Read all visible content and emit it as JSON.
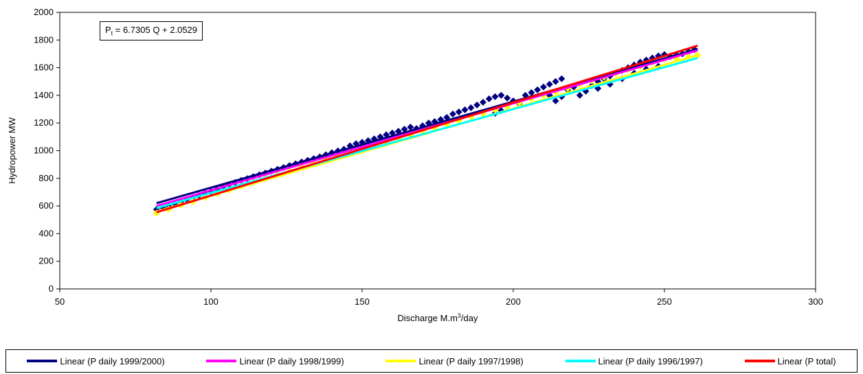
{
  "chart_data": {
    "type": "scatter",
    "title": "",
    "xlabel": {
      "prefix": "Discharge M.m",
      "sup": "3",
      "suffix": "/day"
    },
    "ylabel": "Hydropower MW",
    "xlim": [
      50,
      300
    ],
    "ylim": [
      0,
      2000
    ],
    "xticks": [
      "50",
      "100",
      "150",
      "200",
      "250",
      "300"
    ],
    "yticks": [
      "0",
      "200",
      "400",
      "600",
      "800",
      "1000",
      "1200",
      "1400",
      "1600",
      "1800",
      "2000"
    ],
    "grid": false,
    "equation": {
      "P": "P",
      "sub": "t",
      "rest": " = 6.7305 Q + 2.0529"
    },
    "scatter_series": [
      {
        "color": "#000080",
        "marker": "diamond",
        "points": [
          [
            82,
            575
          ],
          [
            84,
            590
          ],
          [
            86,
            600
          ],
          [
            88,
            615
          ],
          [
            90,
            630
          ],
          [
            92,
            645
          ],
          [
            94,
            660
          ],
          [
            96,
            675
          ],
          [
            98,
            690
          ],
          [
            100,
            705
          ],
          [
            102,
            722
          ],
          [
            104,
            740
          ],
          [
            106,
            755
          ],
          [
            108,
            770
          ],
          [
            110,
            785
          ],
          [
            112,
            798
          ],
          [
            114,
            812
          ],
          [
            116,
            825
          ],
          [
            118,
            838
          ],
          [
            120,
            852
          ],
          [
            122,
            865
          ],
          [
            124,
            878
          ],
          [
            126,
            892
          ],
          [
            128,
            905
          ],
          [
            130,
            918
          ],
          [
            132,
            930
          ],
          [
            134,
            942
          ],
          [
            136,
            955
          ],
          [
            138,
            970
          ],
          [
            140,
            985
          ],
          [
            142,
            998
          ],
          [
            144,
            1010
          ],
          [
            146,
            1035
          ],
          [
            148,
            1050
          ],
          [
            150,
            1060
          ],
          [
            152,
            1072
          ],
          [
            154,
            1085
          ],
          [
            156,
            1100
          ],
          [
            158,
            1115
          ],
          [
            160,
            1128
          ],
          [
            162,
            1140
          ],
          [
            164,
            1155
          ],
          [
            166,
            1170
          ],
          [
            168,
            1160
          ],
          [
            170,
            1180
          ],
          [
            172,
            1200
          ],
          [
            174,
            1210
          ],
          [
            176,
            1225
          ],
          [
            178,
            1240
          ],
          [
            180,
            1265
          ],
          [
            182,
            1280
          ],
          [
            184,
            1295
          ],
          [
            186,
            1310
          ],
          [
            188,
            1330
          ],
          [
            190,
            1350
          ],
          [
            192,
            1375
          ],
          [
            194,
            1390
          ],
          [
            196,
            1400
          ],
          [
            198,
            1380
          ],
          [
            200,
            1360
          ],
          [
            194,
            1270
          ],
          [
            196,
            1290
          ],
          [
            198,
            1320
          ],
          [
            202,
            1340
          ],
          [
            204,
            1400
          ],
          [
            206,
            1420
          ],
          [
            208,
            1440
          ],
          [
            210,
            1460
          ],
          [
            212,
            1480
          ],
          [
            214,
            1500
          ],
          [
            216,
            1520
          ],
          [
            212,
            1400
          ],
          [
            214,
            1360
          ],
          [
            216,
            1390
          ],
          [
            218,
            1440
          ],
          [
            220,
            1460
          ],
          [
            222,
            1400
          ],
          [
            224,
            1430
          ],
          [
            226,
            1470
          ],
          [
            228,
            1500
          ],
          [
            230,
            1520
          ],
          [
            232,
            1540
          ],
          [
            234,
            1560
          ],
          [
            236,
            1580
          ],
          [
            238,
            1600
          ],
          [
            240,
            1620
          ],
          [
            242,
            1640
          ],
          [
            244,
            1655
          ],
          [
            246,
            1670
          ],
          [
            248,
            1685
          ],
          [
            250,
            1695
          ],
          [
            252,
            1680
          ],
          [
            254,
            1690
          ],
          [
            256,
            1700
          ],
          [
            258,
            1715
          ],
          [
            260,
            1730
          ],
          [
            228,
            1450
          ],
          [
            232,
            1480
          ],
          [
            236,
            1520
          ],
          [
            240,
            1560
          ],
          [
            244,
            1590
          ],
          [
            248,
            1610
          ]
        ]
      },
      {
        "color": "#FFFF00",
        "marker": "diamond",
        "points": [
          [
            82,
            548
          ],
          [
            86,
            575
          ],
          [
            90,
            605
          ],
          [
            94,
            632
          ],
          [
            98,
            660
          ],
          [
            102,
            688
          ],
          [
            106,
            715
          ],
          [
            110,
            742
          ],
          [
            114,
            770
          ],
          [
            118,
            797
          ],
          [
            122,
            825
          ],
          [
            126,
            852
          ],
          [
            130,
            880
          ],
          [
            134,
            907
          ],
          [
            138,
            935
          ],
          [
            142,
            962
          ],
          [
            146,
            990
          ],
          [
            150,
            1000
          ],
          [
            154,
            1035
          ],
          [
            158,
            1060
          ],
          [
            162,
            1085
          ],
          [
            166,
            1110
          ],
          [
            170,
            1140
          ],
          [
            174,
            1165
          ],
          [
            178,
            1190
          ],
          [
            182,
            1215
          ],
          [
            186,
            1245
          ],
          [
            190,
            1270
          ],
          [
            194,
            1295
          ],
          [
            198,
            1320
          ],
          [
            202,
            1345
          ],
          [
            206,
            1375
          ],
          [
            210,
            1400
          ],
          [
            214,
            1425
          ],
          [
            218,
            1450
          ],
          [
            222,
            1480
          ],
          [
            226,
            1505
          ],
          [
            230,
            1530
          ],
          [
            234,
            1555
          ],
          [
            238,
            1585
          ],
          [
            242,
            1610
          ],
          [
            246,
            1635
          ],
          [
            250,
            1660
          ],
          [
            254,
            1665
          ],
          [
            258,
            1680
          ],
          [
            261,
            1690
          ]
        ]
      }
    ],
    "series": [
      {
        "name": "Linear (P daily 1999/2000)",
        "color": "#000080",
        "x": [
          82,
          261
        ],
        "y": [
          620,
          1735
        ]
      },
      {
        "name": "Linear (P daily 1998/1999)",
        "color": "#FF00FF",
        "x": [
          82,
          261
        ],
        "y": [
          600,
          1725
        ]
      },
      {
        "name": "Linear (P daily 1997/1998)",
        "color": "#FFFF00",
        "x": [
          82,
          261
        ],
        "y": [
          560,
          1690
        ]
      },
      {
        "name": "Linear (P daily 1996/1997)",
        "color": "#00FFFF",
        "x": [
          82,
          261
        ],
        "y": [
          585,
          1670
        ]
      },
      {
        "name": "Linear (P total)",
        "color": "#FF0000",
        "x": [
          82,
          261
        ],
        "y": [
          554,
          1759
        ]
      }
    ]
  }
}
